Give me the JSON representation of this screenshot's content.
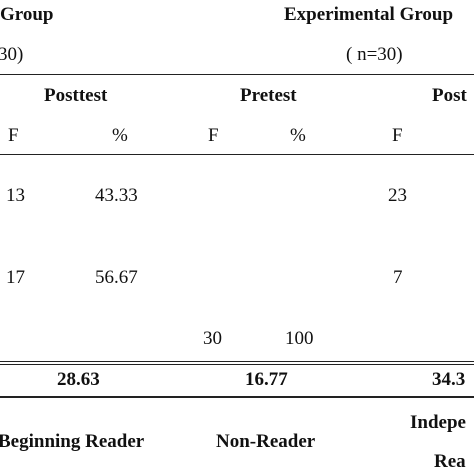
{
  "header": {
    "control_group_title": "Group",
    "control_group_n": "30)",
    "experimental_group_title": "Experimental Group",
    "experimental_group_n": "( n=30)"
  },
  "subheader": {
    "posttest_control": "Posttest",
    "pretest_experimental": "Pretest",
    "posttest_experimental": "Post"
  },
  "columns": {
    "f1": "F",
    "pct1": "%",
    "f2": "F",
    "pct2": "%",
    "f3": "F"
  },
  "rows": [
    {
      "c_f": "13",
      "c_pct": "43.33",
      "e_pre_f": "",
      "e_pre_pct": "",
      "e_post_f": "23"
    },
    {
      "c_f": "17",
      "c_pct": "56.67",
      "e_pre_f": "",
      "e_pre_pct": "",
      "e_post_f": "7"
    },
    {
      "c_f": "",
      "c_pct": "",
      "e_pre_f": "30",
      "e_pre_pct": "100",
      "e_post_f": ""
    }
  ],
  "means": {
    "control_posttest": "28.63",
    "experimental_pretest": "16.77",
    "experimental_posttest": "34.3"
  },
  "levels": {
    "control_posttest": "Beginning Reader",
    "experimental_pretest": "Non-Reader",
    "experimental_posttest_line1": "Indepe",
    "experimental_posttest_line2": "Rea"
  }
}
